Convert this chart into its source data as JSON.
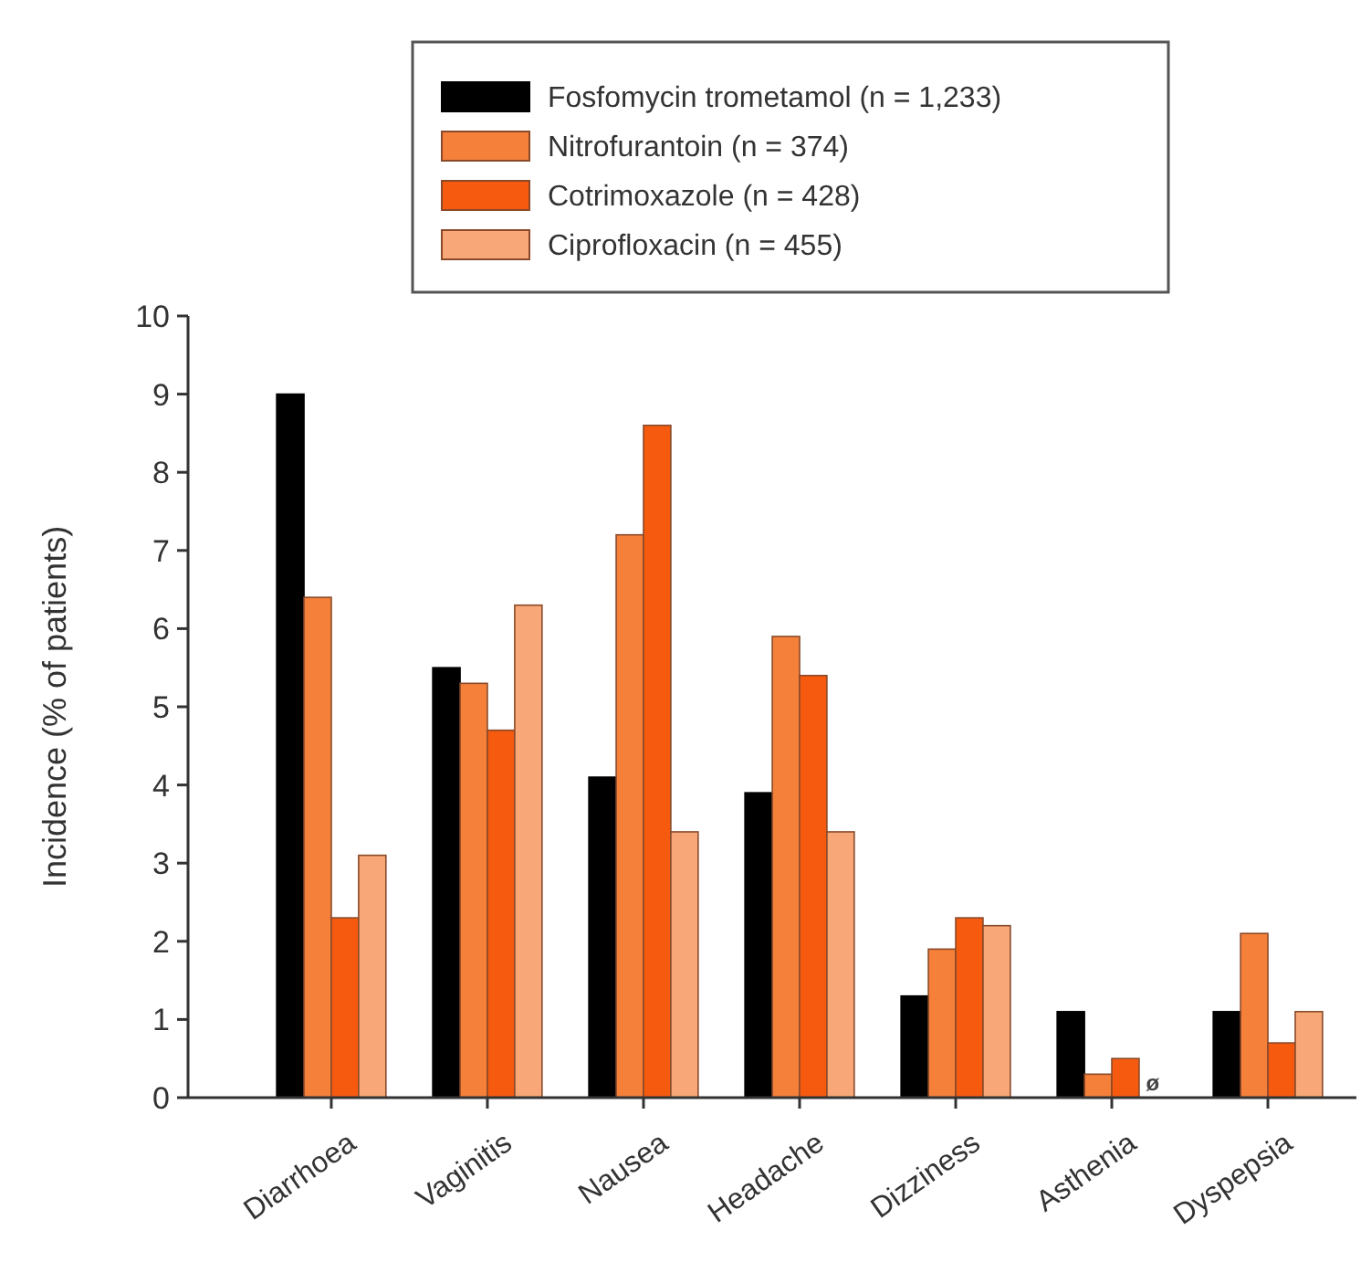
{
  "chart_data": {
    "type": "bar",
    "ylabel": "Incidence (% of patients)",
    "categories": [
      "Diarrhoea",
      "Vaginitis",
      "Nausea",
      "Headache",
      "Dizziness",
      "Asthenia",
      "Dyspepsia"
    ],
    "series": [
      {
        "name": "Fosfomycin trometamol (n = 1,233)",
        "color": "#000000",
        "values": [
          9,
          5.5,
          4.1,
          3.9,
          1.3,
          1.1,
          1.1
        ]
      },
      {
        "name": "Nitrofurantoin (n = 374)",
        "color": "#f5803a",
        "values": [
          6.4,
          5.3,
          7.2,
          5.9,
          1.9,
          0.3,
          2.1
        ]
      },
      {
        "name": "Cotrimoxazole (n = 428)",
        "color": "#f55a0f",
        "values": [
          2.3,
          4.7,
          8.6,
          5.4,
          2.3,
          0.5,
          0.7
        ]
      },
      {
        "name": "Ciprofloxacin (n = 455)",
        "color": "#f8a878",
        "values": [
          3.1,
          6.3,
          3.4,
          3.4,
          2.2,
          0,
          1.1
        ]
      }
    ],
    "annotations": [
      {
        "text": "ø",
        "x": "Asthenia",
        "y": 0
      }
    ],
    "ylim": [
      0,
      10
    ],
    "yticks": [
      0,
      1,
      2,
      3,
      4,
      5,
      6,
      7,
      8,
      9,
      10
    ],
    "grid": false,
    "legend": "top"
  }
}
